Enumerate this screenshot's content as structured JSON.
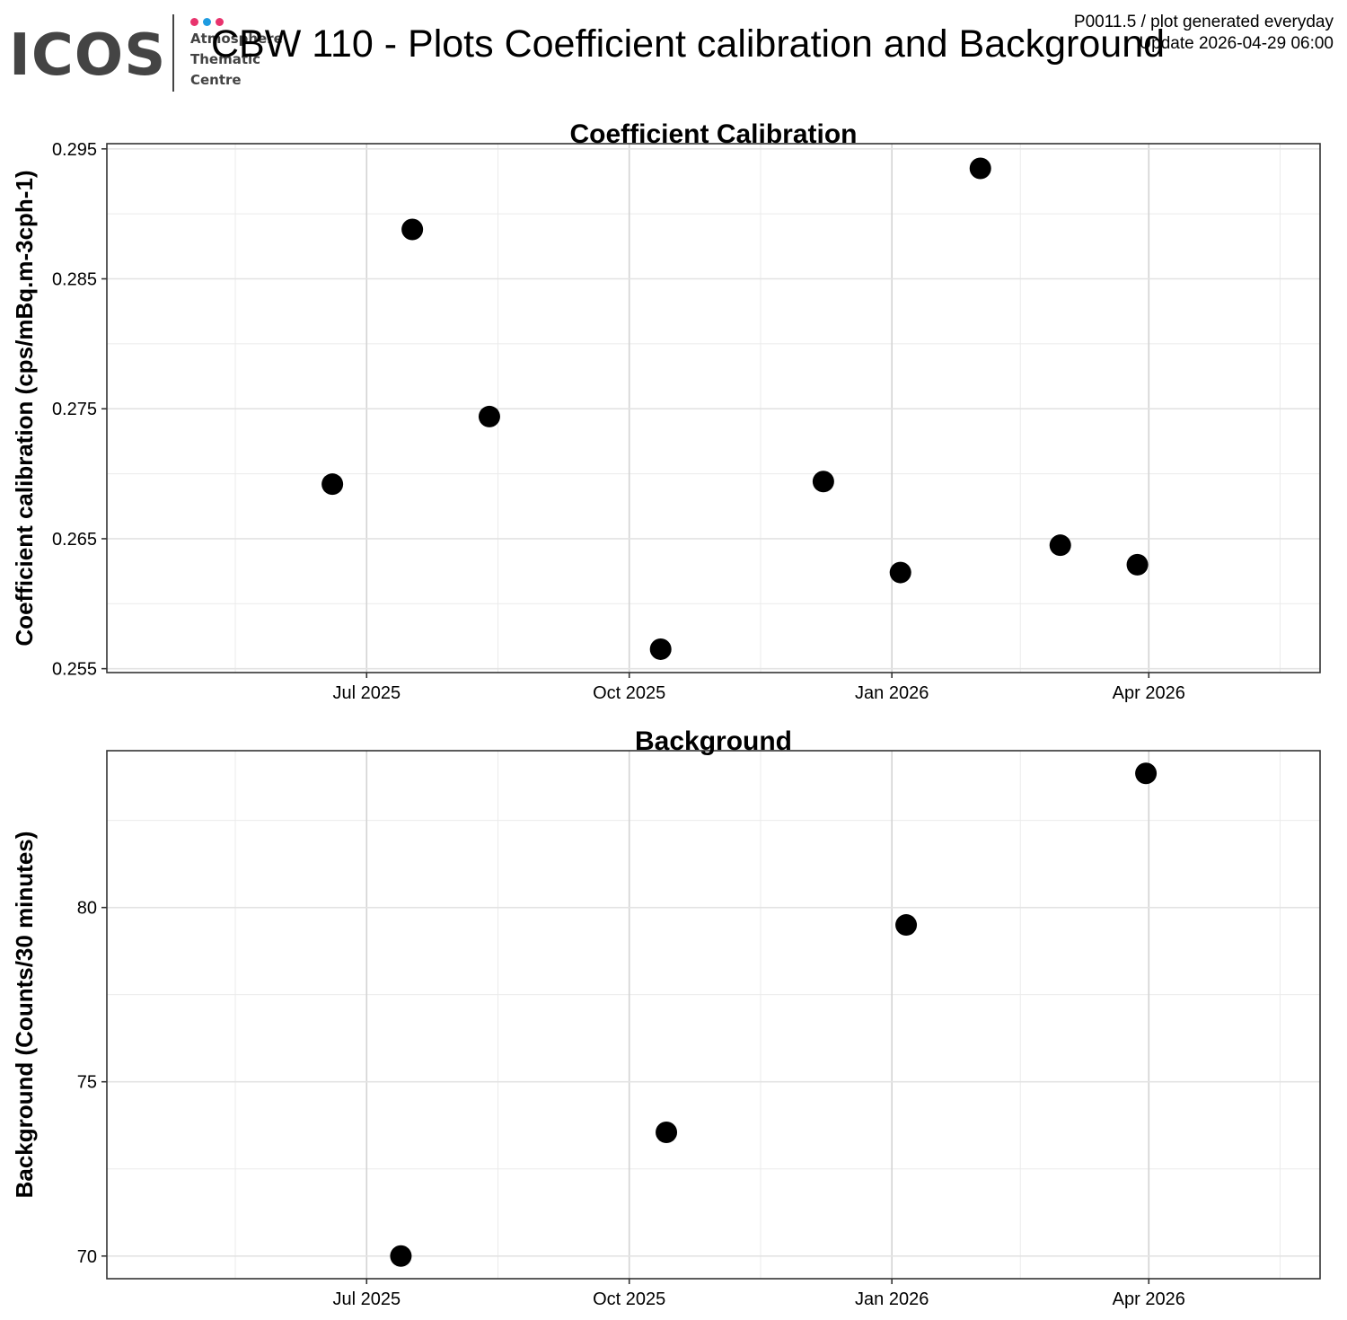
{
  "header": {
    "logo": {
      "text": "ICOS",
      "subtitle_lines": [
        "Atmosphere",
        "Thematic",
        "Centre"
      ],
      "dot_colors": [
        "#e8336d",
        "#1e9be0",
        "#e8336d"
      ]
    },
    "title": "CBW 110 - Plots Coefficient calibration and Background",
    "meta_line1": "P0011.5 / plot generated everyday",
    "meta_line2": "Update  2026-04-29 06:00"
  },
  "chart_data": [
    {
      "type": "scatter",
      "title": "Coefficient Calibration",
      "xlabel": "",
      "ylabel": "Coefficient calibration (cps/mBq.m-3cph-1)",
      "xlim": [
        "2025-04-01",
        "2026-05-31"
      ],
      "ylim": [
        0.2547,
        0.2954
      ],
      "x_ticks": [
        "2025-07-01",
        "2025-10-01",
        "2026-01-01",
        "2026-04-01"
      ],
      "x_tick_labels": [
        "Jul 2025",
        "Oct 2025",
        "Jan 2026",
        "Apr 2026"
      ],
      "y_ticks": [
        0.255,
        0.265,
        0.275,
        0.285,
        0.295
      ],
      "y_tick_labels": [
        "0.255",
        "0.265",
        "0.275",
        "0.285",
        "0.295"
      ],
      "grid": true,
      "legend": "none",
      "point_color": "#000000",
      "points": [
        {
          "x": "2025-06-19",
          "y": 0.2692
        },
        {
          "x": "2025-07-17",
          "y": 0.2888
        },
        {
          "x": "2025-08-13",
          "y": 0.2744
        },
        {
          "x": "2025-10-12",
          "y": 0.2565
        },
        {
          "x": "2025-12-08",
          "y": 0.2694
        },
        {
          "x": "2026-01-04",
          "y": 0.2624
        },
        {
          "x": "2026-02-01",
          "y": 0.2935
        },
        {
          "x": "2026-03-01",
          "y": 0.2645
        },
        {
          "x": "2026-03-28",
          "y": 0.263
        }
      ]
    },
    {
      "type": "scatter",
      "title": "Background",
      "xlabel": "",
      "ylabel": "Background (Counts/30 minutes)",
      "xlim": [
        "2025-04-01",
        "2026-05-31"
      ],
      "ylim": [
        69.35,
        84.5
      ],
      "x_ticks": [
        "2025-07-01",
        "2025-10-01",
        "2026-01-01",
        "2026-04-01"
      ],
      "x_tick_labels": [
        "Jul 2025",
        "Oct 2025",
        "Jan 2026",
        "Apr 2026"
      ],
      "y_ticks": [
        70,
        75,
        80
      ],
      "y_tick_labels": [
        "70",
        "75",
        "80"
      ],
      "grid": true,
      "legend": "none",
      "point_color": "#000000",
      "points": [
        {
          "x": "2025-07-13",
          "y": 70.0
        },
        {
          "x": "2025-10-14",
          "y": 73.55
        },
        {
          "x": "2026-01-06",
          "y": 79.5
        },
        {
          "x": "2026-03-31",
          "y": 83.85
        }
      ]
    }
  ]
}
